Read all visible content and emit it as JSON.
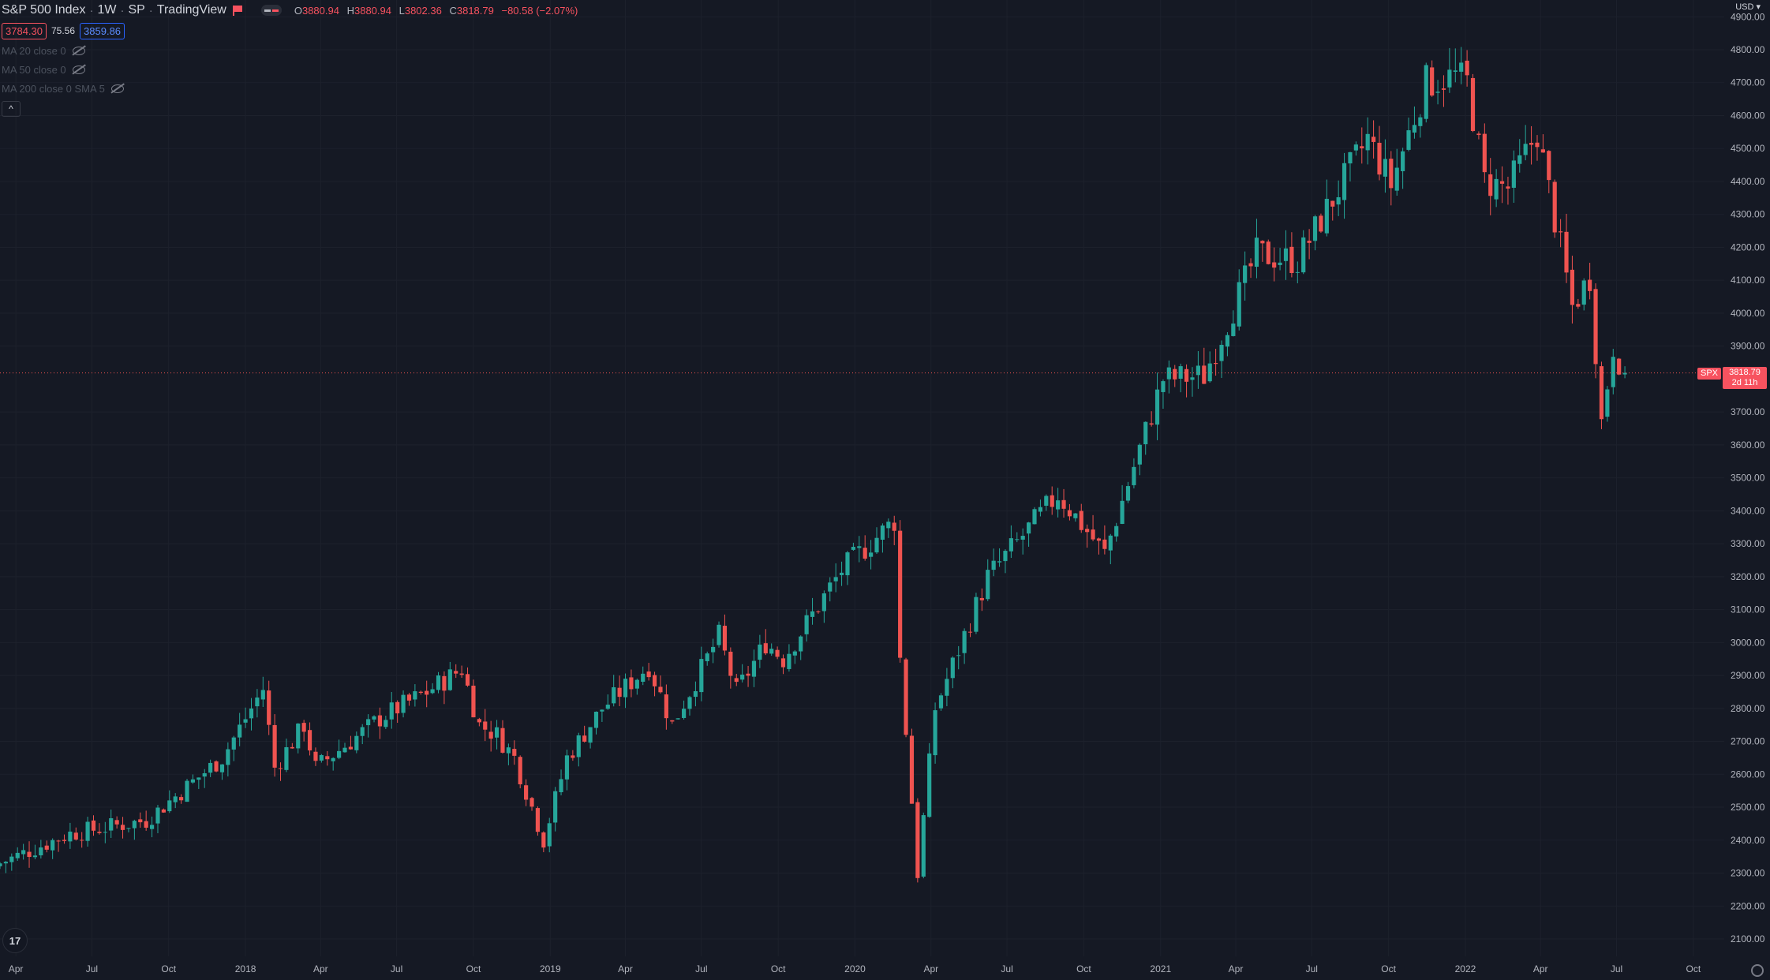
{
  "header": {
    "symbol_name": "S&P 500 Index",
    "interval": "1W",
    "exchange": "SP",
    "source": "TradingView",
    "ohlc": {
      "open_label": "O",
      "open": "3880.94",
      "high_label": "H",
      "high": "3880.94",
      "low_label": "L",
      "low": "3802.36",
      "close_label": "C",
      "close": "3818.79",
      "change": "−80.58 (−2.07%)"
    },
    "bid": "3784.30",
    "spread": "75.56",
    "ask": "3859.86"
  },
  "indicators": [
    {
      "label": "MA 20 close 0"
    },
    {
      "label": "MA 50 close 0"
    },
    {
      "label": "MA 200 close 0 SMA 5"
    }
  ],
  "collapse_icon": "^",
  "price_axis": {
    "currency": "USD ▾",
    "ticks": [
      "4900.00",
      "4800.00",
      "4700.00",
      "4600.00",
      "4500.00",
      "4400.00",
      "4300.00",
      "4200.00",
      "4100.00",
      "4000.00",
      "3900.00",
      "3700.00",
      "3600.00",
      "3500.00",
      "3400.00",
      "3300.00",
      "3200.00",
      "3100.00",
      "3000.00",
      "2900.00",
      "2800.00",
      "2700.00",
      "2600.00",
      "2500.00",
      "2400.00",
      "2300.00",
      "2200.00",
      "2100.00"
    ],
    "last_symbol": "SPX",
    "last_price": "3818.79",
    "countdown": "2d 11h"
  },
  "time_axis": {
    "labels": [
      "Apr",
      "Jul",
      "Oct",
      "2018",
      "Apr",
      "Jul",
      "Oct",
      "2019",
      "Apr",
      "Jul",
      "Oct",
      "2020",
      "Apr",
      "Jul",
      "Oct",
      "2021",
      "Apr",
      "Jul",
      "Oct",
      "2022",
      "Apr",
      "Jul",
      "Oct"
    ]
  },
  "logo_text": "17",
  "colors": {
    "background": "#151924",
    "grid": "#1f2330",
    "up": "#26a69a",
    "down": "#ef5350",
    "text": "#b2b5be"
  },
  "chart_data": {
    "type": "candlestick",
    "interval": "1W",
    "y_range": [
      2060,
      4930
    ],
    "x_start": "2017-03-13",
    "x_end": "2022-11-07",
    "last_price": 3818.79,
    "anchors": [
      {
        "date": "2017-03-13",
        "close": 2330
      },
      {
        "date": "2017-06-05",
        "close": 2420
      },
      {
        "date": "2017-09-04",
        "close": 2460
      },
      {
        "date": "2017-12-04",
        "close": 2650
      },
      {
        "date": "2018-01-22",
        "close": 2860
      },
      {
        "date": "2018-02-05",
        "close": 2620
      },
      {
        "date": "2018-03-12",
        "close": 2750
      },
      {
        "date": "2018-03-26",
        "close": 2620
      },
      {
        "date": "2018-05-07",
        "close": 2700
      },
      {
        "date": "2018-06-11",
        "close": 2770
      },
      {
        "date": "2018-08-06",
        "close": 2850
      },
      {
        "date": "2018-09-17",
        "close": 2920
      },
      {
        "date": "2018-10-08",
        "close": 2750
      },
      {
        "date": "2018-10-29",
        "close": 2720
      },
      {
        "date": "2018-11-19",
        "close": 2650
      },
      {
        "date": "2018-12-24",
        "close": 2400
      },
      {
        "date": "2019-01-21",
        "close": 2650
      },
      {
        "date": "2019-03-04",
        "close": 2800
      },
      {
        "date": "2019-04-29",
        "close": 2930
      },
      {
        "date": "2019-05-27",
        "close": 2750
      },
      {
        "date": "2019-07-22",
        "close": 3020
      },
      {
        "date": "2019-08-12",
        "close": 2850
      },
      {
        "date": "2019-09-16",
        "close": 3000
      },
      {
        "date": "2019-10-07",
        "close": 2950
      },
      {
        "date": "2019-12-16",
        "close": 3220
      },
      {
        "date": "2020-02-17",
        "close": 3370
      },
      {
        "date": "2020-02-24",
        "close": 2950
      },
      {
        "date": "2020-03-16",
        "close": 2300
      },
      {
        "date": "2020-04-06",
        "close": 2800
      },
      {
        "date": "2020-06-08",
        "close": 3200
      },
      {
        "date": "2020-08-31",
        "close": 3450
      },
      {
        "date": "2020-10-26",
        "close": 3270
      },
      {
        "date": "2021-01-04",
        "close": 3800
      },
      {
        "date": "2021-02-22",
        "close": 3810
      },
      {
        "date": "2021-04-26",
        "close": 4180
      },
      {
        "date": "2021-06-14",
        "close": 4160
      },
      {
        "date": "2021-09-06",
        "close": 4530
      },
      {
        "date": "2021-10-04",
        "close": 4390
      },
      {
        "date": "2021-11-15",
        "close": 4700
      },
      {
        "date": "2021-12-20",
        "close": 4720
      },
      {
        "date": "2022-01-03",
        "close": 4700
      },
      {
        "date": "2022-01-24",
        "close": 4400
      },
      {
        "date": "2022-02-21",
        "close": 4380
      },
      {
        "date": "2022-03-28",
        "close": 4550
      },
      {
        "date": "2022-05-09",
        "close": 4020
      },
      {
        "date": "2022-05-30",
        "close": 4110
      },
      {
        "date": "2022-06-13",
        "close": 3670
      },
      {
        "date": "2022-06-27",
        "close": 3900
      },
      {
        "date": "2022-07-11",
        "close": 3818.79
      }
    ]
  }
}
